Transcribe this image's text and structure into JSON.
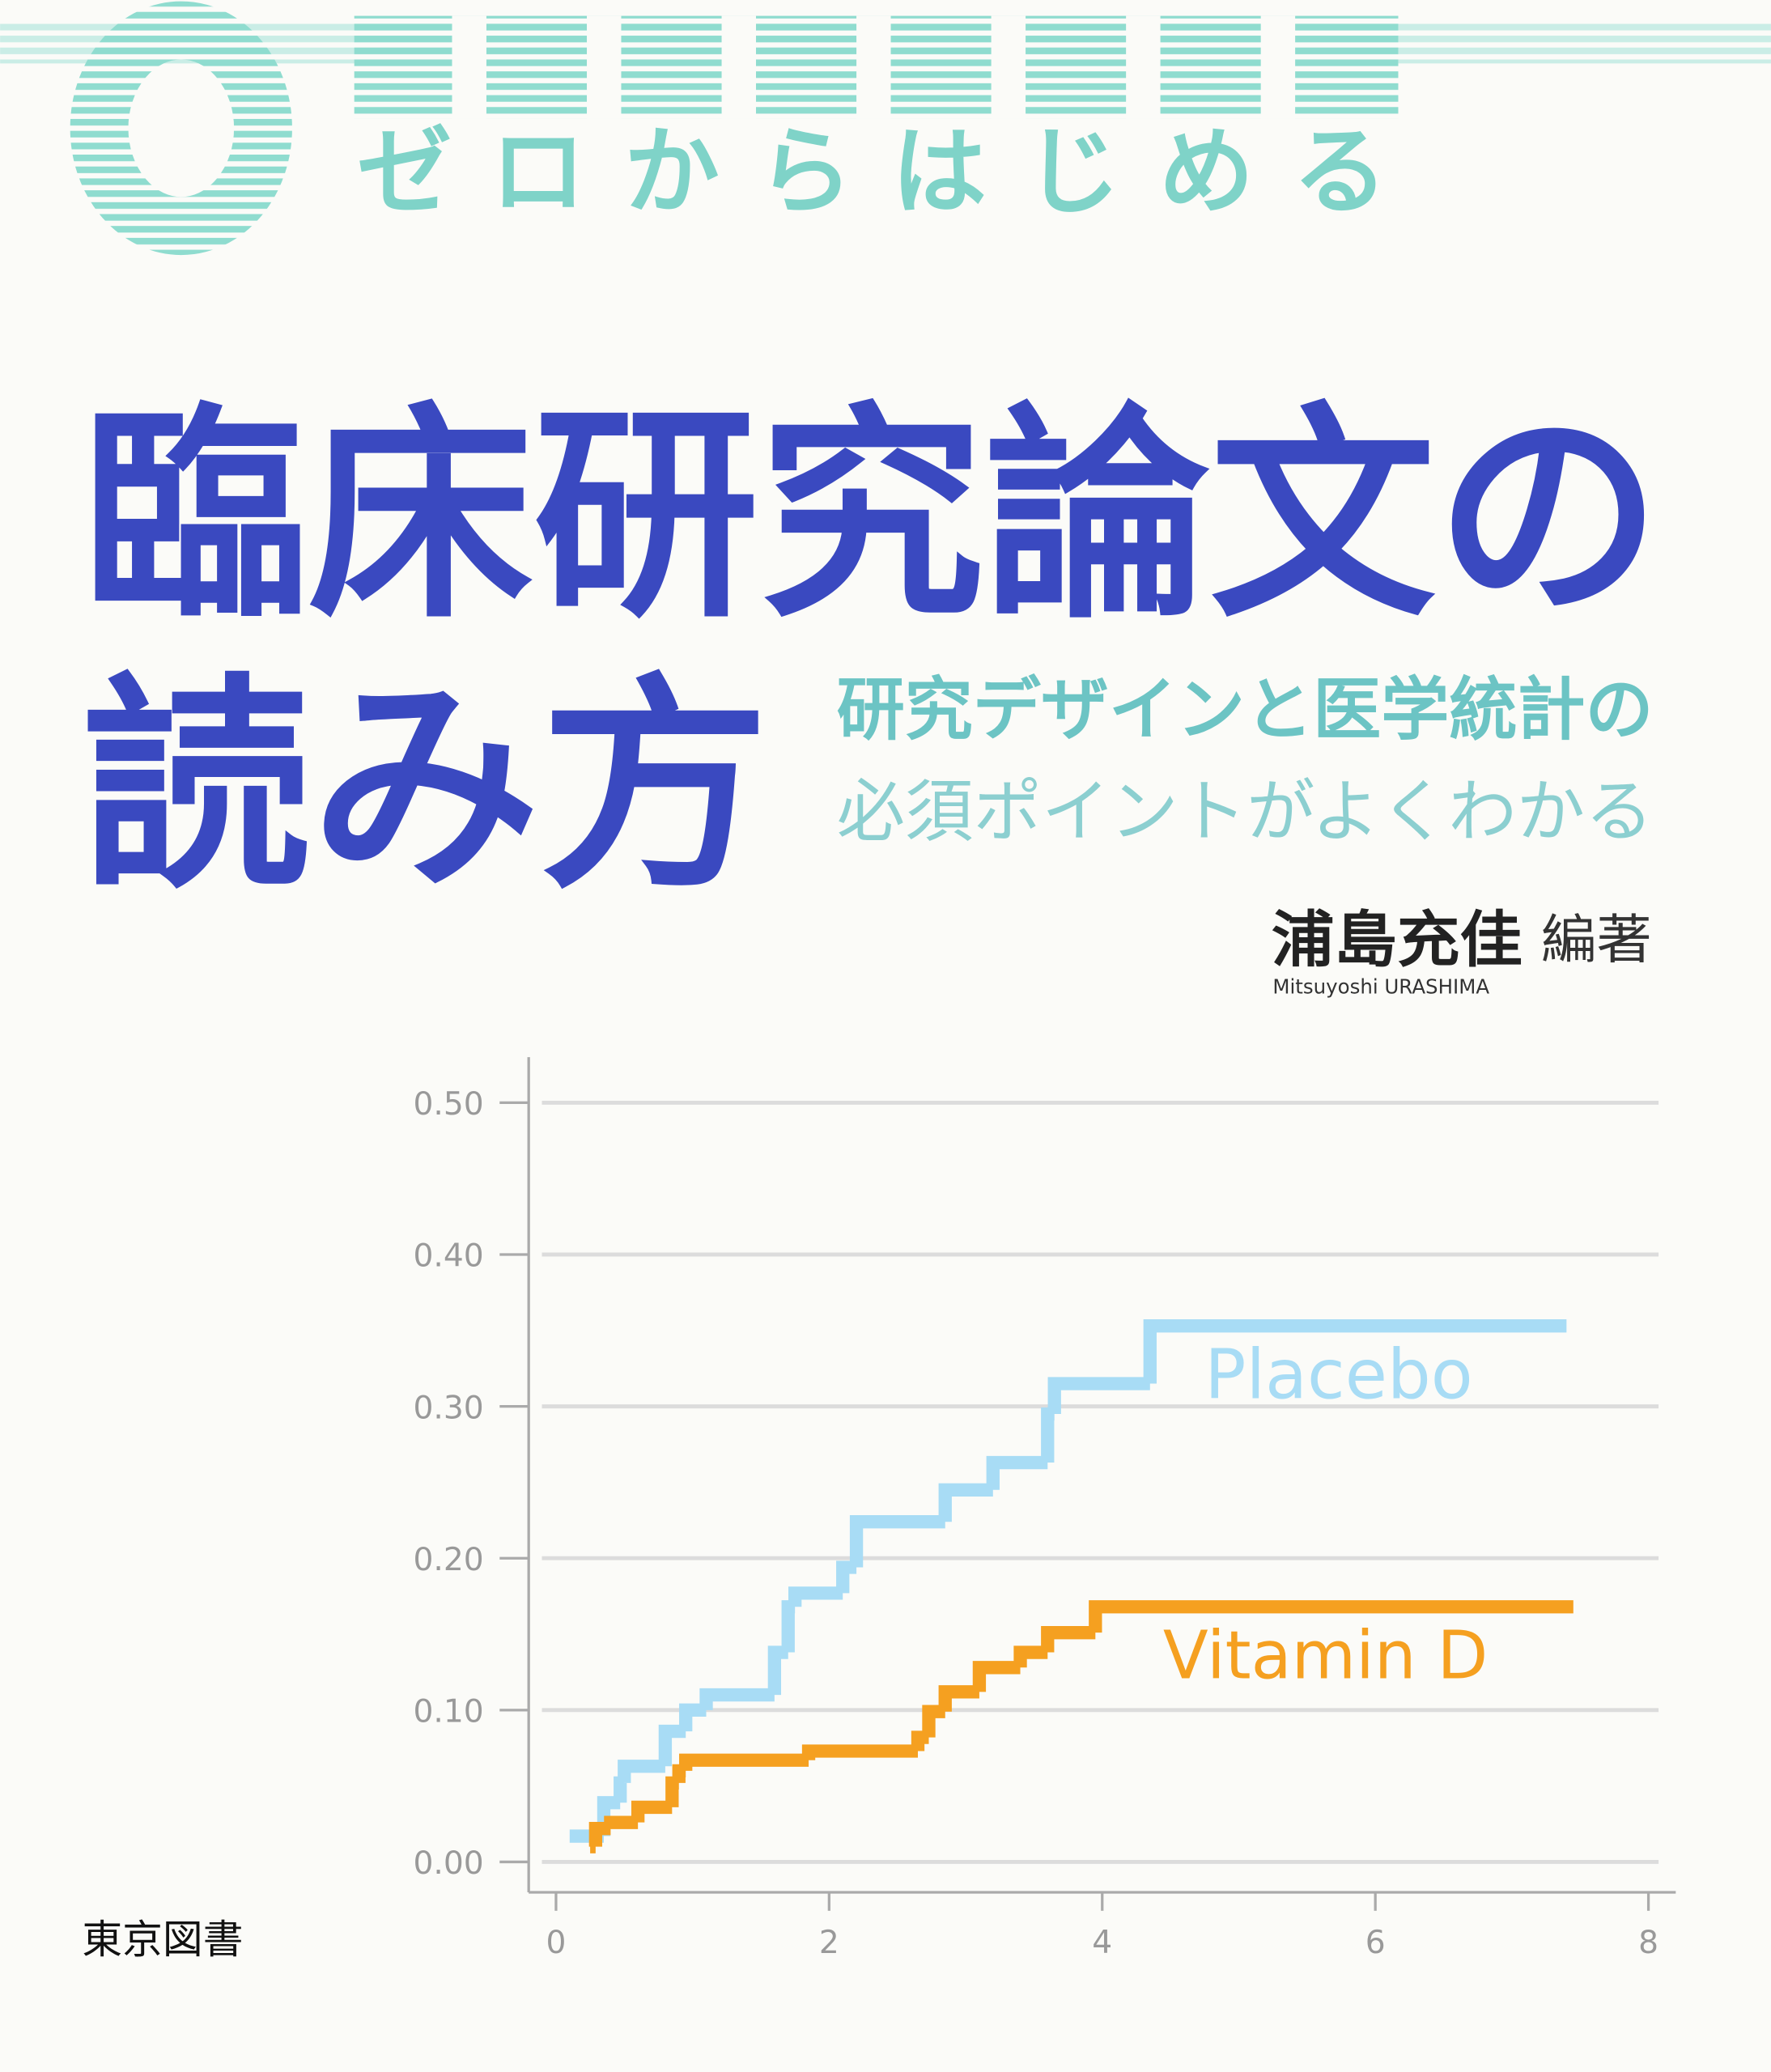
{
  "series_label": "ゼロからはじめる",
  "title_line1": "臨床研究論文の",
  "title_line2": "読み方",
  "subtitle_line1": "研究デザインと医学統計の",
  "subtitle_line2": "必須ポイントがよくわかる",
  "author": "浦島充佳",
  "role": "編著",
  "author_romaji": "Mitsuyoshi URASHIMA",
  "publisher": "東京図書",
  "chart_data": {
    "type": "step",
    "xlim": [
      -0.2,
      8.2
    ],
    "ylim": [
      -0.02,
      0.53
    ],
    "xticks": [
      0,
      2,
      4,
      6,
      8
    ],
    "yticks": [
      {
        "value": 0,
        "label": "0.00"
      },
      {
        "value": 0.1,
        "label": "0.10"
      },
      {
        "value": 0.2,
        "label": "0.20"
      },
      {
        "value": 0.3,
        "label": "0.30"
      },
      {
        "value": 0.4,
        "label": "0.40"
      },
      {
        "value": 0.5,
        "label": "0.50"
      }
    ],
    "grid": true,
    "series": [
      {
        "name": "Placebo",
        "color": "#a8dcf5",
        "x": [
          0.1,
          0.35,
          0.47,
          0.5,
          0.8,
          0.95,
          1.1,
          1.6,
          1.7,
          1.75,
          2.1,
          2.2,
          2.85,
          3.2,
          3.6,
          3.65,
          4.35,
          7.4
        ],
        "values": [
          0.017,
          0.039,
          0.052,
          0.063,
          0.086,
          0.1,
          0.11,
          0.138,
          0.168,
          0.177,
          0.194,
          0.224,
          0.245,
          0.263,
          0.295,
          0.315,
          0.353,
          0.353
        ]
      },
      {
        "name": "Vitamin D",
        "color": "#f5a020",
        "x": [
          0.25,
          0.29,
          0.4,
          0.6,
          0.85,
          0.9,
          0.95,
          1.85,
          2.65,
          2.73,
          2.85,
          3.1,
          3.4,
          3.6,
          3.95,
          7.45
        ],
        "values": [
          0.01,
          0.022,
          0.026,
          0.036,
          0.052,
          0.06,
          0.067,
          0.073,
          0.082,
          0.099,
          0.112,
          0.128,
          0.138,
          0.151,
          0.168,
          0.168
        ]
      }
    ]
  }
}
